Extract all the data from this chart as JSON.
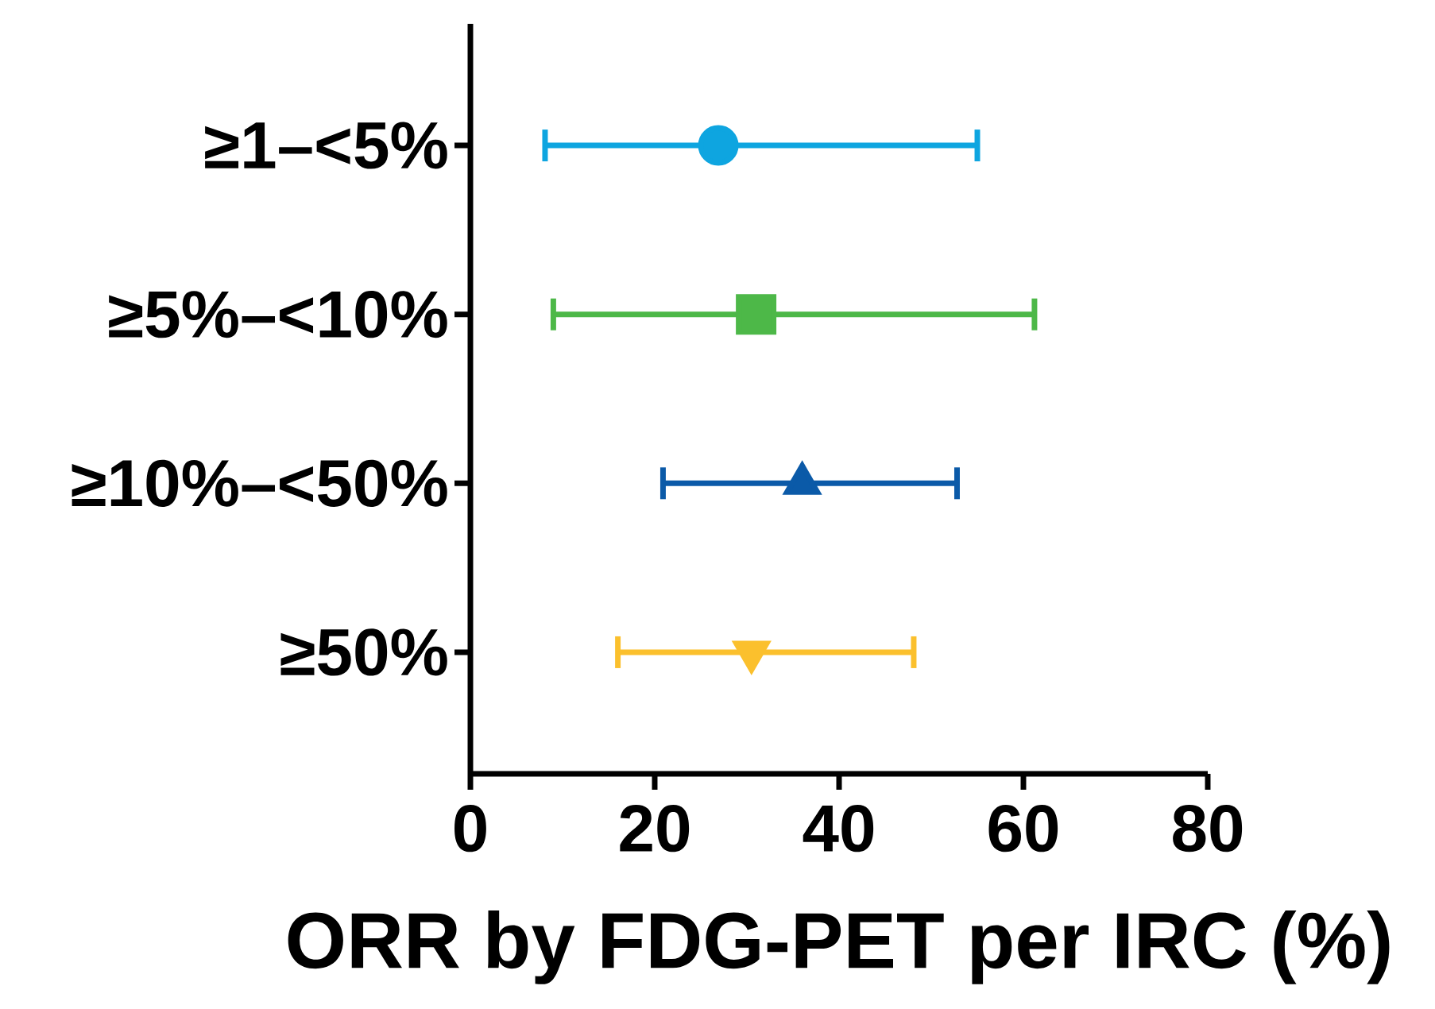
{
  "chart_data": {
    "type": "scatter",
    "orientation": "horizontal",
    "xlabel": "ORR by FDG-PET per IRC (%)",
    "categories": [
      "≥1–<5%",
      "≥5%–<10%",
      "≥10%–<50%",
      "≥50%"
    ],
    "xlim": [
      0,
      80
    ],
    "xticks": [
      0,
      20,
      40,
      60,
      80
    ],
    "grid": false,
    "series": [
      {
        "color": "#0ea5e0",
        "marker": "circle",
        "values": [
          26.9,
          null,
          null,
          null
        ],
        "errors": [
          [
            8.1,
            55.0
          ],
          null,
          null,
          null
        ]
      },
      {
        "color": "#4db848",
        "marker": "square",
        "values": [
          null,
          31.0,
          null,
          null
        ],
        "errors": [
          null,
          [
            9.0,
            61.2
          ],
          null,
          null
        ]
      },
      {
        "color": "#0b5aa8",
        "marker": "triangle",
        "values": [
          null,
          null,
          36.0,
          null
        ],
        "errors": [
          null,
          null,
          [
            20.9,
            52.8
          ],
          null
        ]
      },
      {
        "color": "#fbc02d",
        "marker": "triangle_down",
        "values": [
          null,
          null,
          null,
          30.5
        ],
        "errors": [
          null,
          null,
          null,
          [
            16.0,
            48.1
          ]
        ]
      }
    ]
  }
}
